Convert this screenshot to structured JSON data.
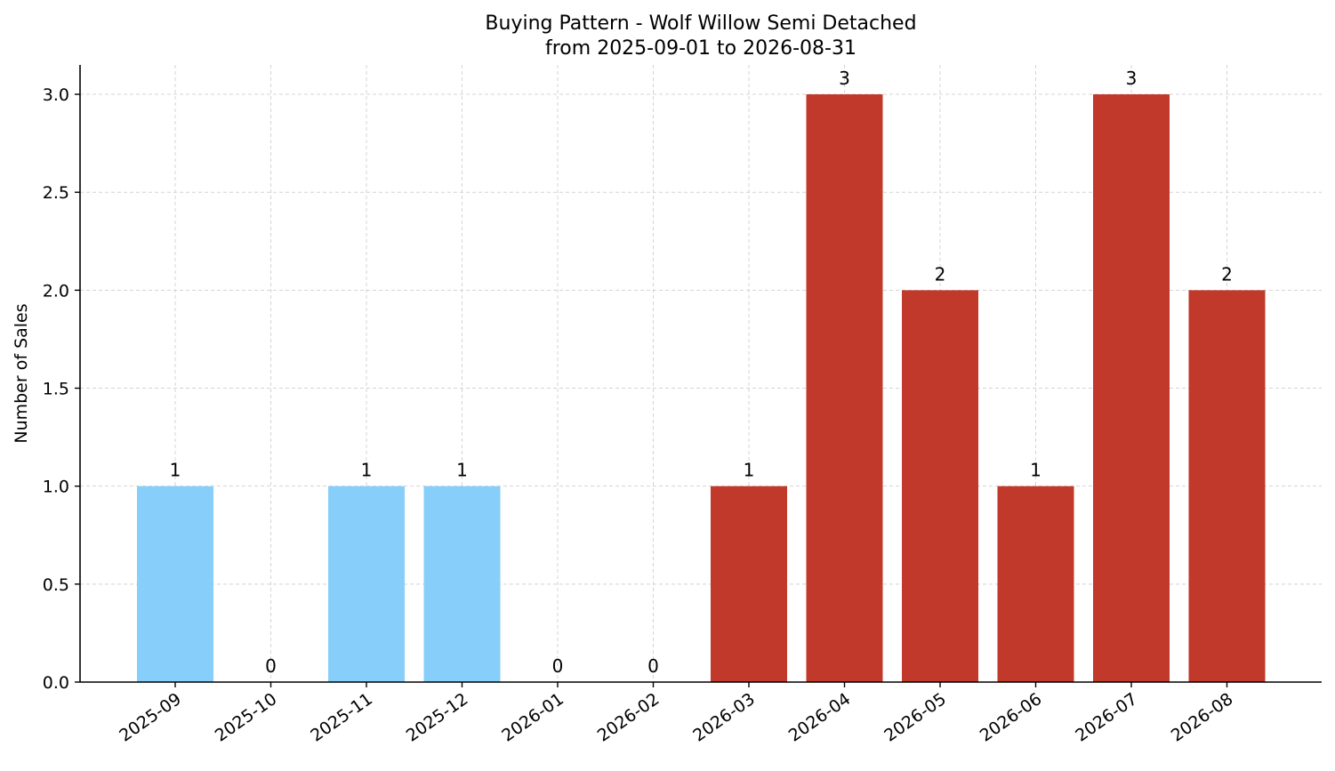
{
  "chart_data": {
    "type": "bar",
    "title": "Buying Pattern - Wolf Willow Semi Detached",
    "subtitle": "from 2025-09-01 to 2026-08-31",
    "xlabel": "",
    "ylabel": "Number of Sales",
    "categories": [
      "2025-09",
      "2025-10",
      "2025-11",
      "2025-12",
      "2026-01",
      "2026-02",
      "2026-03",
      "2026-04",
      "2026-05",
      "2026-06",
      "2026-07",
      "2026-08"
    ],
    "values": [
      1,
      0,
      1,
      1,
      0,
      0,
      1,
      3,
      2,
      1,
      3,
      2
    ],
    "bar_colors": [
      "#87cefa",
      "#87cefa",
      "#87cefa",
      "#87cefa",
      "#87cefa",
      "#87cefa",
      "#c0392b",
      "#c0392b",
      "#c0392b",
      "#c0392b",
      "#c0392b",
      "#c0392b"
    ],
    "data_labels": [
      "1",
      "0",
      "1",
      "1",
      "0",
      "0",
      "1",
      "3",
      "2",
      "1",
      "3",
      "2"
    ],
    "ylim": [
      0,
      3.15
    ],
    "yticks": [
      0.0,
      0.5,
      1.0,
      1.5,
      2.0,
      2.5,
      3.0
    ],
    "ytick_labels": [
      "0.0",
      "0.5",
      "1.0",
      "1.5",
      "2.0",
      "2.5",
      "3.0"
    ],
    "grid": true,
    "legend": "none"
  }
}
